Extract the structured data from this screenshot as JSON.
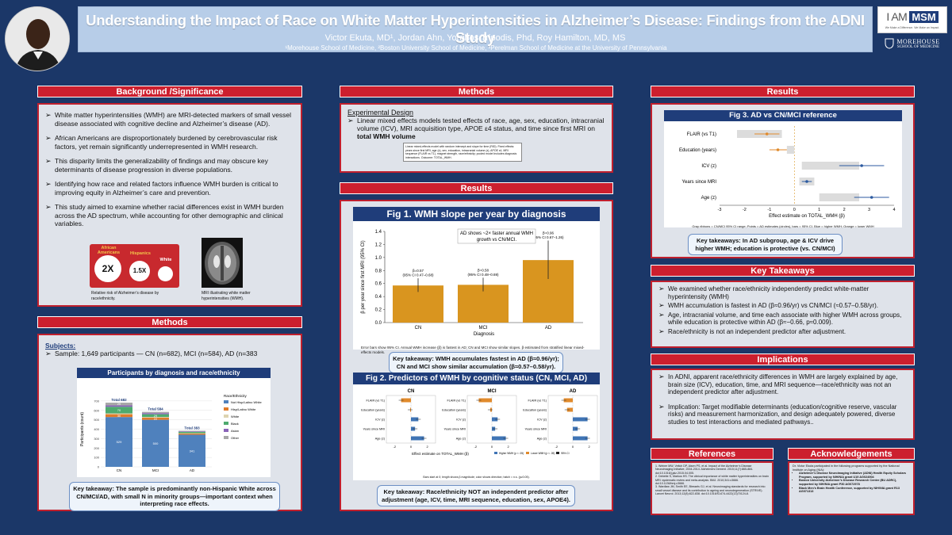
{
  "header": {
    "title": "Understanding the Impact of Race on White Matter Hyperintensities in Alzheimer’s Disease: Findings from the ADNI Study",
    "authors": "Victor Ekuta, MD¹, Jordan Ahn, Yorghos Tripodis, Phd, Roy Hamilton, MD, MS",
    "affiliations": "¹Morehouse School of Medicine, ²Boston University School of Medicine, ³Perelman School of Medicine at the University of Pennsylvania",
    "logo1": "I AM MSM",
    "logo1_sub": "We Make a Difference. We Make an Impact.",
    "logo2": "MOREHOUSE",
    "logo2_sub": "SCHOOL OF MEDICINE"
  },
  "background": {
    "header": "Background /Significance",
    "bullets": [
      "White matter hyperintensities (WMH) are MRI-detected markers of small vessel disease associated with cognitive decline and Alzheimer’s disease (AD).",
      "African Americans are disproportionately burdened by cerebrovascular risk factors, yet remain significantly underrepresented in WMH research.",
      "This disparity limits the generalizability of findings and may obscure key determinants of disease progression in diverse populations.",
      "Identifying how race and related factors influence WMH burden is critical to improving equity in Alzheimer’s care and prevention.",
      "This study aimed to examine whether racial differences exist in WMH burden across the AD spectrum, while accounting for other demographic and clinical variables."
    ],
    "risk_labels": [
      "African Americans",
      "Hispanics",
      "White"
    ],
    "risk_values": [
      "2X",
      "1.5X",
      ""
    ],
    "caption1": "Relative risk of Alzheimer’s disease by race/ethnicity.",
    "caption2": "MRI illustrating white matter hyperintensities (WMH)."
  },
  "methods_left": {
    "header": "Methods",
    "subjects_label": "Subjects:",
    "sample": "Sample: 1,649 participants — CN (n=682), MCI (n=584), AD (n=383",
    "fig_title": "Participants by diagnosis and race/ethnicity",
    "takeaway": "Key takeaway: The sample is predominantly non-Hispanic White across CN/MCI/AD, with small N in minority groups—important context when interpreting race effects."
  },
  "methods_mid": {
    "header": "Methods",
    "design_label": "Experimental Design",
    "design_text": "Linear mixed effects models tested effects of race, age, sex, education, intracranial volume (ICV), MRI acquisition type, APOE ε4 status, and time since first MRI on",
    "design_bold": "total WMH volume",
    "model_note": "Linear mixed-effects model with random intercept and slope for time (RID). Fixed effects: years since first MRI, age (z), sex, education, intracranial volume (z), APOE ε4, MRI sequence (FLAIR vs T1), magnet strength, race/ethnicity; pooled model includes diagnosis interactions. Outcome: TOTAL_WMH."
  },
  "results_mid": {
    "header": "Results",
    "fig1_title": "Fig 1. WMH slope per year by diagnosis",
    "fig1_note": "Error bars show 95% CI. Annual WMH increase (β) is fastest in AD; CN and MCI show similar slopes. β estimated from stratified linear mixed-effects models.",
    "fig1_takeaway": "Key takeaway: WMH accumulates fastest in AD (β≈0.96/yr); CN and MCI show similar accumulation (β≈0.57–0.58/yr).",
    "fig2_title": "Fig 2. Predictors of WMH by cognitive status (CN, MCI, AD)",
    "fig2_note": "Bars start at 0; length shows β magnitude; color shows direction; hatch = n.s. (p≥0.05).",
    "fig2_takeaway": "Key takeaway: Race/ethnicity NOT an independent predictor after adjustment (age, ICV, time, MRI sequence, education, sex, APOE4)."
  },
  "results_right": {
    "header": "Results",
    "fig3_title": "Fig 3. AD vs CN/MCI reference",
    "fig3_note": "Gray ribbons = CN/MCI 95% CI range;  Points = AD estimates (circles), bars = 95% CI.  Blue = higher WMH; Orange = lower WMH",
    "fig3_takeaway": "Key takeaways: In AD subgroup, age & ICV drive higher WMH; education is protective (vs. CN/MCI)"
  },
  "key_takeaways": {
    "header": "Key Takeaways",
    "bullets": [
      "We examined whether race/ethnicity independently predict white-matter hyperintensity (WMH)",
      "WMH accumulation is fastest in AD (β≈0.96/yr) vs CN/MCI (≈0.57–0.58/yr).",
      "Age, intracranial volume, and time each associate with higher WMH across groups, while education is protective within AD (β≈−0.66, p≈0.009).",
      "Race/ethnicity is not an independent predictor after adjustment."
    ]
  },
  "implications": {
    "header": "Implications",
    "bullets": [
      "In ADNI, apparent race/ethnicity differences in WMH are largely explained by age, brain size (ICV), education, time, and MRI sequence—race/ethnicity was not an independent predictor after adjustment.",
      "Implication: Target modifiable determinants (education/cognitive reserve, vascular risks) and measurement harmonization, and design adequately powered, diverse studies to test interactions and mediated pathways.."
    ]
  },
  "references": {
    "header": "References",
    "items": [
      "1. Weiner MW, Veitch DP, Aisen PS, et al. Impact of the Alzheimer’s Disease Neuroimaging Initiative, 2004-2014. Alzheimers Dement. 2015;11(7):865-884. doi:10.1016/j.jalz.2015.04.005.",
      "2. Debette S, Markus HS. The clinical importance of white matter hyperintensities on brain MRI: systematic review and meta-analysis. BMJ. 2010;341:c3666. doi:10.1136/bmj.c3666.",
      "3. Wardlaw JM, Smith EE, Biessels GJ, et al. Neuroimaging standards for research into small vessel disease and its contribution to ageing and neurodegeneration (STRIVE). Lancet Neurol. 2013;12(8):822-838. doi:10.1016/S1474-4422(13)70124-8."
    ]
  },
  "acknowledgements": {
    "header": "Acknowledgements",
    "intro": "Dr. Victor Ekuta participated in the following programs supported by the National Institute on Aging (NIA):",
    "items": [
      "Alzheimer’s Disease Neuroimaging Initiative (ADNI) Health Equity Scholars Program, supported by NIH/NIA grant U19 AG024904",
      "Boston University Alzheimer’s Disease Research Center (BU ADRC), supported by NIH/NIA grant P30 AG072978",
      "Black Men’s Brain Health Conference, supported by NIH/NIA grant R13 AG071313"
    ]
  },
  "chart_data": [
    {
      "type": "bar",
      "title": "Participants by diagnosis and race/ethnicity",
      "xlabel": "",
      "ylabel": "Participants (count)",
      "categories": [
        "CN",
        "MCI",
        "AD"
      ],
      "totals_labels": [
        "Total 682",
        "Total 584",
        "Total 383"
      ],
      "ylim": [
        0,
        800
      ],
      "yticks": [
        0,
        100,
        200,
        300,
        400,
        500,
        600,
        700
      ],
      "legend_title": "Race/Ethnicity",
      "series": [
        {
          "name": "Not Hisp/Latino White",
          "values": [
            529,
            500,
            341
          ],
          "color": "#4f81bd"
        },
        {
          "name": "Hisp/Latino White",
          "values": [
            30,
            22,
            12
          ],
          "color": "#e07b2a"
        },
        {
          "name": "White",
          "values": [
            9,
            8,
            5
          ],
          "color": "#ddd4b0"
        },
        {
          "name": "Black",
          "values": [
            70,
            29,
            14
          ],
          "color": "#4eaa6e"
        },
        {
          "name": "Asian",
          "values": [
            15,
            12,
            6
          ],
          "color": "#8a63b8"
        },
        {
          "name": "Other",
          "values": [
            29,
            13,
            5
          ],
          "color": "#a7a7a7"
        }
      ]
    },
    {
      "type": "bar",
      "title": "Fig 1. WMH slope per year by diagnosis",
      "xlabel": "Diagnosis",
      "ylabel": "β per year since first MRI (95% CI)",
      "categories": [
        "CN",
        "MCI",
        "AD"
      ],
      "values": [
        0.57,
        0.58,
        0.96
      ],
      "ci": [
        [
          0.47,
          0.68
        ],
        [
          0.48,
          0.69
        ],
        [
          0.67,
          1.26
        ]
      ],
      "labels": [
        "β=0.57\n(95% CI 0.47–0.68)",
        "β=0.58\n(95% CI 0.48–0.69)",
        "β=0.96\n(95% CI 0.67–1.26)"
      ],
      "annotation": "AD shows ~2× faster annual WMH growth vs CN/MCI.",
      "ylim": [
        0,
        1.4
      ],
      "yticks": [
        0.0,
        0.2,
        0.4,
        0.6,
        0.8,
        1.0,
        1.2,
        1.4
      ]
    },
    {
      "type": "bar",
      "title": "Fig 2. Predictors of WMH by cognitive status (CN, MCI, AD)",
      "xlabel": "Effect estimate on TOTAL_WMH (β)",
      "predictors": [
        "FLAIR (vs T1)",
        "Education (years)",
        "ICV (z)",
        "Years since MRI",
        "Age (z)"
      ],
      "legend": [
        "Higher WMH (p < .05)",
        "Lower WMH (p < .05)",
        "95% CI"
      ],
      "xlim": [
        -3,
        3
      ],
      "xticks": [
        -2,
        0,
        2
      ],
      "panels": [
        {
          "name": "CN",
          "values": [
            -1.2,
            -0.1,
            0.9,
            0.5,
            1.6
          ]
        },
        {
          "name": "MCI",
          "values": [
            -1.6,
            -0.2,
            0.7,
            0.4,
            1.7
          ]
        },
        {
          "name": "AD",
          "values": [
            -1.1,
            -0.7,
            1.8,
            0.6,
            1.8
          ]
        }
      ]
    },
    {
      "type": "scatter",
      "title": "Fig 3. AD vs CN/MCI reference",
      "xlabel": "Effect estimate on TOTAL_WMH (β)",
      "categories": [
        "FLAIR (vs T1)",
        "Education (years)",
        "ICV (z)",
        "Years since MRI",
        "Age (z)"
      ],
      "ad_values": [
        -1.1,
        -0.66,
        2.7,
        0.5,
        3.1
      ],
      "ad_ci": [
        [
          -1.6,
          -0.6
        ],
        [
          -1.0,
          -0.3
        ],
        [
          1.8,
          3.6
        ],
        [
          0.3,
          0.7
        ],
        [
          2.4,
          3.8
        ]
      ],
      "ref_range": [
        [
          -2.3,
          -0.5
        ],
        [
          -0.3,
          0.0
        ],
        [
          0.3,
          2.6
        ],
        [
          0.2,
          0.8
        ],
        [
          1.0,
          2.6
        ]
      ],
      "xlim": [
        -3,
        4
      ],
      "xticks": [
        -3,
        -2,
        -1,
        0,
        1,
        2,
        3,
        4
      ]
    }
  ]
}
